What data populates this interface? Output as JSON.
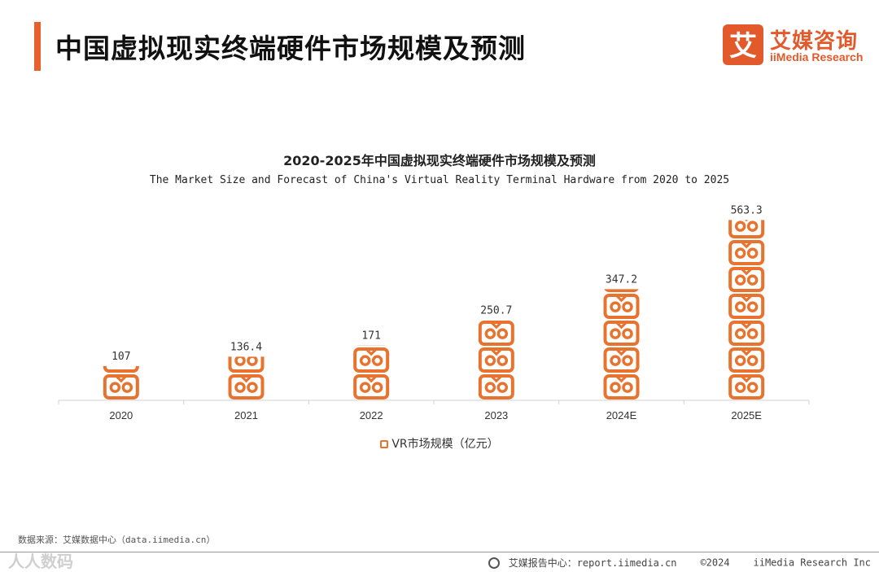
{
  "header": {
    "title": "中国虚拟现实终端硬件市场规模及预测"
  },
  "logo": {
    "mark_char": "艾",
    "cn": "艾媒咨询",
    "en": "iiMedia Research"
  },
  "accent_color": "#e8612c",
  "bar_color": "#e8732e",
  "icon_name": "vr-headset-icon",
  "chart_data": {
    "type": "bar",
    "title": "2020-2025年中国虚拟现实终端硬件市场规模及预测",
    "subtitle": "The Market Size and Forecast of China's Virtual Reality Terminal Hardware from 2020 to 2025",
    "categories": [
      "2020",
      "2021",
      "2022",
      "2023",
      "2024E",
      "2025E"
    ],
    "series": [
      {
        "name": "VR市场规模（亿元）",
        "values": [
          107,
          136.4,
          171,
          250.7,
          347.2,
          563.3
        ]
      }
    ],
    "value_labels": [
      "107",
      "136.4",
      "171",
      "250.7",
      "347.2",
      "563.3"
    ],
    "ylim": [
      0,
      600
    ],
    "grid": false,
    "legend": "bottom-center"
  },
  "footer": {
    "source": "数据来源：艾媒数据中心（data.iimedia.cn）",
    "watermark": "人人数码",
    "report_center": "艾媒报告中心：report.iimedia.cn",
    "copyright": "©2024",
    "company": "iiMedia Research Inc"
  }
}
